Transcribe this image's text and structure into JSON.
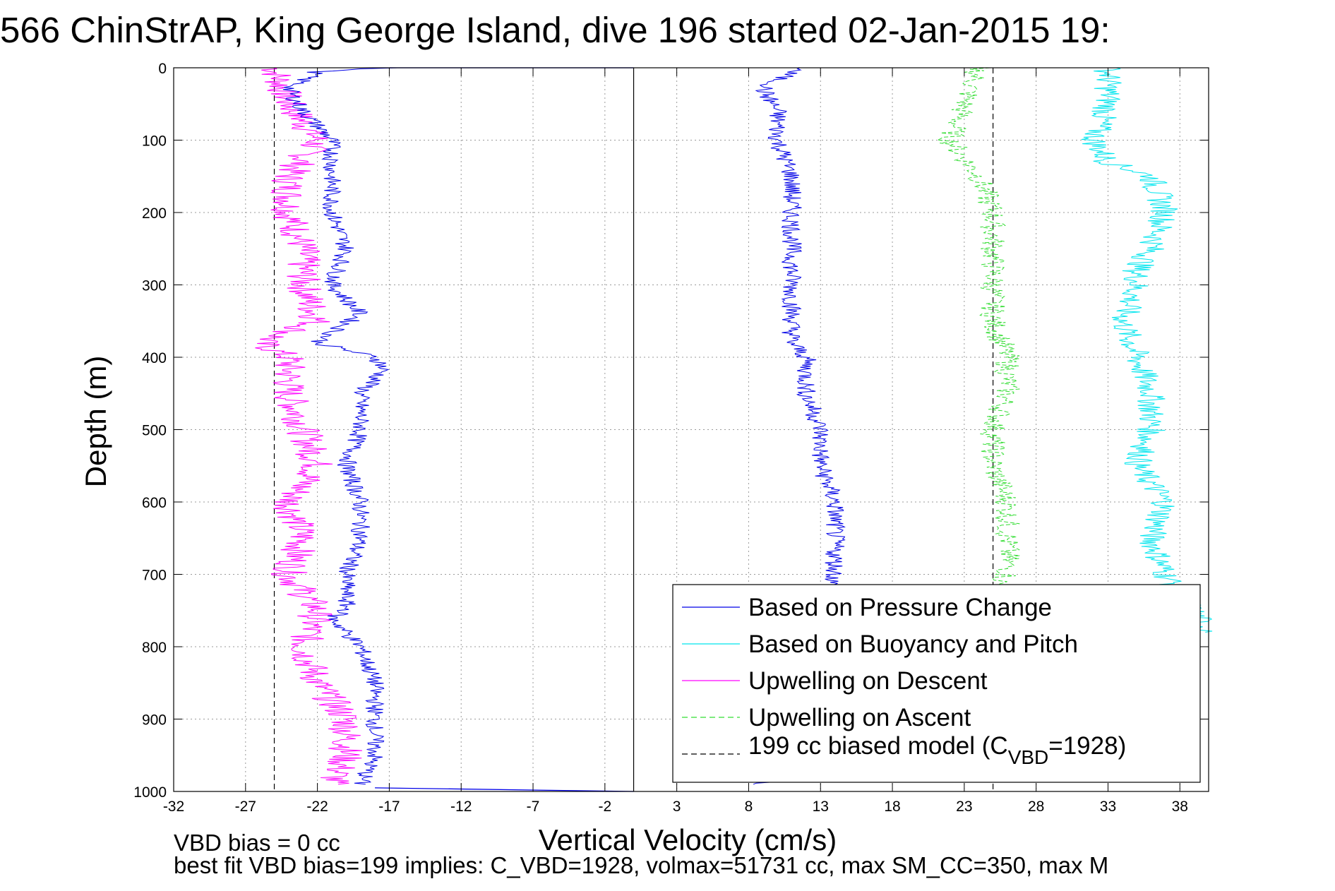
{
  "chart_data": {
    "type": "line",
    "title": "566 ChinStrAP, King George Island, dive 196 started 02-Jan-2015 19:",
    "xlabel": "Vertical Velocity (cm/s)",
    "ylabel": "Depth (m)",
    "xlim": [
      -32,
      40
    ],
    "ylim": [
      0,
      1000
    ],
    "y_reversed": true,
    "grid": true,
    "x_ticks": [
      -32,
      -27,
      -22,
      -17,
      -12,
      -7,
      -2,
      3,
      8,
      13,
      18,
      23,
      28,
      33,
      38
    ],
    "y_ticks": [
      0,
      100,
      200,
      300,
      400,
      500,
      600,
      700,
      800,
      900,
      1000
    ],
    "vertical_lines": [
      {
        "x": 0,
        "style": "solid",
        "color": "#000000"
      },
      {
        "x": -25,
        "style": "dashed",
        "color": "#000000"
      },
      {
        "x": 25,
        "style": "dashed",
        "color": "#000000"
      }
    ],
    "legend_position": "bottom-right",
    "series": [
      {
        "name": "Based on Pressure Change",
        "color": "#0000e6",
        "style": "solid",
        "depth": [
          0,
          5,
          30,
          60,
          100,
          150,
          200,
          250,
          300,
          340,
          380,
          400,
          410,
          420,
          450,
          500,
          550,
          600,
          650,
          700,
          750,
          760,
          800,
          850,
          900,
          950,
          990
        ],
        "descent_x": [
          -17,
          -22,
          -24,
          -23,
          -21,
          -21,
          -21,
          -20,
          -21,
          -19,
          -22,
          -18,
          -17.5,
          -17.5,
          -19,
          -19,
          -20,
          -19,
          -19,
          -20,
          -20,
          -21,
          -19,
          -18,
          -18,
          -18,
          -19
        ],
        "ascent_x": [
          12,
          11,
          9,
          10,
          10,
          11,
          11,
          11,
          11,
          11,
          11,
          12,
          12,
          12,
          12,
          13,
          13,
          14,
          14,
          14,
          13,
          13,
          13,
          13,
          12,
          11,
          9
        ],
        "surface_segment_x": [
          -17,
          0
        ]
      },
      {
        "name": "Based on Buoyancy and Pitch",
        "color": "#00e5ee",
        "style": "solid",
        "depth": [
          0,
          50,
          100,
          130,
          150,
          200,
          250,
          280,
          300,
          350,
          400,
          450,
          500,
          550,
          600,
          650,
          700,
          780
        ],
        "values": [
          33,
          33,
          32,
          33,
          36,
          37,
          36,
          35,
          35,
          34,
          35,
          36,
          36,
          35,
          37,
          36,
          37,
          40
        ]
      },
      {
        "name": "Upwelling on Descent",
        "color": "#ff00ff",
        "style": "solid",
        "depth": [
          0,
          50,
          100,
          150,
          200,
          250,
          300,
          350,
          380,
          400,
          450,
          500,
          550,
          600,
          650,
          700,
          750,
          800,
          850,
          900,
          950,
          990
        ],
        "values": [
          -25,
          -24,
          -22,
          -24,
          -24,
          -23,
          -23,
          -22,
          -26,
          -24,
          -24,
          -23,
          -22,
          -24,
          -23,
          -24,
          -22,
          -23,
          -22,
          -20,
          -20,
          -21
        ]
      },
      {
        "name": "Upwelling on Ascent",
        "color": "#33dd33",
        "style": "dashed",
        "depth": [
          0,
          50,
          100,
          150,
          200,
          250,
          300,
          350,
          400,
          450,
          500,
          550,
          600,
          650,
          700,
          720
        ],
        "values": [
          24,
          23,
          22,
          24,
          25,
          25,
          25,
          25,
          26,
          26,
          25,
          25,
          26,
          26,
          26,
          25
        ]
      },
      {
        "name": "199 cc biased model (C",
        "name_sub": "VBD",
        "name_tail": "=1928)",
        "color": "#000000",
        "style": "dashed",
        "x": [
          -25,
          25
        ]
      }
    ]
  },
  "footer": {
    "line1": "VBD bias = 0 cc",
    "line2": "best fit VBD bias=199 implies: C_VBD=1928, volmax=51731 cc, max SM_CC=350, max M"
  },
  "colors": {
    "axes": "#000000",
    "grid": "#9a9a9a",
    "background": "#ffffff"
  }
}
